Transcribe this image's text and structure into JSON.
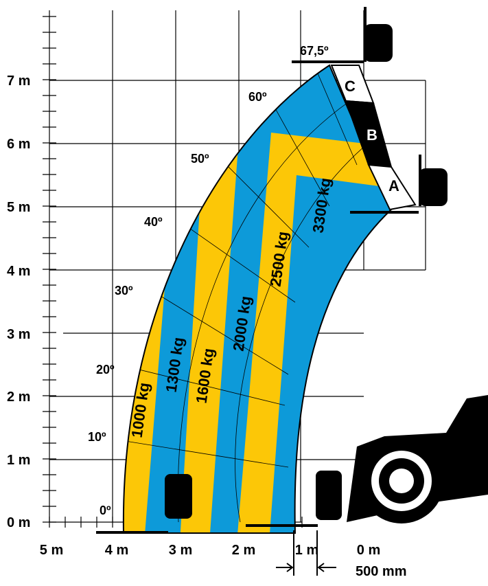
{
  "y_axis": {
    "labels": [
      "0 m",
      "1 m",
      "2 m",
      "3 m",
      "4 m",
      "5 m",
      "6 m",
      "7 m"
    ]
  },
  "x_axis": {
    "labels": [
      "5 m",
      "4 m",
      "3 m",
      "2 m",
      "1 m",
      "0 m"
    ]
  },
  "angles": [
    "0º",
    "10º",
    "20º",
    "30º",
    "40º",
    "50º",
    "60º",
    "67,5º"
  ],
  "load_zones": [
    "1000 kg",
    "1300 kg",
    "1600 kg",
    "2000 kg",
    "2500 kg",
    "3300 kg"
  ],
  "boom_sections": [
    "A",
    "B",
    "C"
  ],
  "dimension": "500 mm"
}
